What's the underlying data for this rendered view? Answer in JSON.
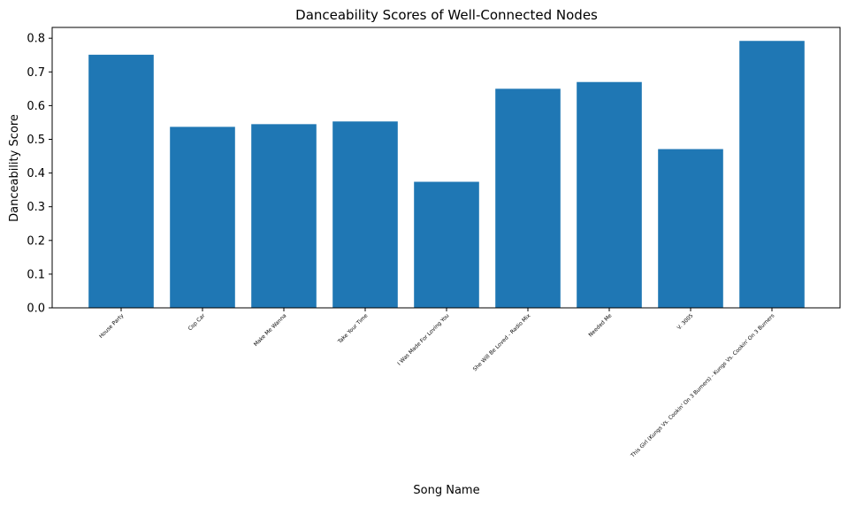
{
  "chart_data": {
    "type": "bar",
    "title": "Danceability Scores of Well-Connected Nodes",
    "xlabel": "Song Name",
    "ylabel": "Danceability Score",
    "categories": [
      "House Party",
      "Cop Car",
      "Make Me Wanna",
      "Take Your Time",
      "I Was Made For Loving You",
      "She Will Be Loved - Radio Mix",
      "Needed Me",
      "V. 3005",
      "This Girl (Kungs Vs. Cookin' On 3 Burners) - Kungs Vs. Cookin' On 3 Burners"
    ],
    "values": [
      0.751,
      0.537,
      0.545,
      0.553,
      0.374,
      0.65,
      0.67,
      0.471,
      0.792
    ],
    "ylim": [
      0,
      0.832
    ],
    "yticks": [
      0.0,
      0.1,
      0.2,
      0.3,
      0.4,
      0.5,
      0.6,
      0.7,
      0.8
    ],
    "ytick_labels": [
      "0.0",
      "0.1",
      "0.2",
      "0.3",
      "0.4",
      "0.5",
      "0.6",
      "0.7",
      "0.8"
    ],
    "grid": false,
    "bar_color": "#1f77b4"
  }
}
